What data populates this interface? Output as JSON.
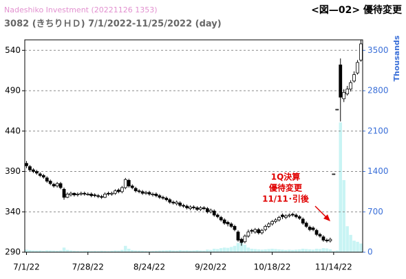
{
  "chart_data": {
    "type": "candlestick",
    "title": "Nadeshiko Investment  (20221126 1353)",
    "subtitle": "3082 (きちりＨＤ) 7/1/2022-11/25/2022 (day)",
    "heading": "<図—02> 優待変更",
    "y2label": "Thousands",
    "annotation": [
      "1Q決算",
      "優待変更",
      "11/11･引後"
    ],
    "annotation_color": "#e00000",
    "up_color": "#ffffff",
    "down_color": "#000000",
    "volume_color": "#c8f4f4",
    "grid": true,
    "categories": [
      "7/1/22",
      null,
      null,
      null,
      null,
      null,
      null,
      null,
      null,
      null,
      null,
      null,
      null,
      null,
      null,
      null,
      null,
      null,
      "7/28/22",
      null,
      null,
      null,
      null,
      null,
      null,
      null,
      null,
      null,
      null,
      null,
      null,
      null,
      null,
      null,
      null,
      null,
      "8/24/22",
      null,
      null,
      null,
      null,
      null,
      null,
      null,
      null,
      null,
      null,
      null,
      null,
      null,
      null,
      null,
      null,
      null,
      "9/20/22",
      null,
      null,
      null,
      null,
      null,
      null,
      null,
      null,
      null,
      null,
      null,
      null,
      null,
      null,
      null,
      null,
      null,
      "10/18/22",
      null,
      null,
      null,
      null,
      null,
      null,
      null,
      null,
      null,
      null,
      null,
      null,
      null,
      null,
      null,
      null,
      null,
      "11/14/22",
      null,
      null,
      null,
      null,
      null,
      null,
      null,
      null
    ],
    "open": [
      400,
      396,
      392,
      390,
      387,
      385,
      382,
      378,
      374,
      372,
      375,
      368,
      358,
      361,
      363,
      361,
      362,
      363,
      361,
      362,
      361,
      360,
      359,
      358,
      363,
      362,
      363,
      367,
      365,
      370,
      379,
      372,
      369,
      366,
      365,
      363,
      364,
      361,
      362,
      360,
      358,
      357,
      355,
      352,
      350,
      351,
      348,
      347,
      344,
      346,
      345,
      343,
      345,
      344,
      340,
      341,
      336,
      333,
      330,
      327,
      325,
      322,
      315,
      306,
      303,
      310,
      317,
      315,
      318,
      314,
      318,
      322,
      325,
      328,
      330,
      336,
      333,
      335,
      337,
      336,
      334,
      331,
      326,
      321,
      320,
      317,
      312,
      309,
      305,
      304,
      387,
      467,
      522,
      480,
      486,
      492,
      502,
      512,
      528
    ],
    "high": [
      403,
      398,
      394,
      392,
      389,
      387,
      384,
      380,
      376,
      377,
      377,
      370,
      364,
      365,
      364,
      364,
      365,
      365,
      364,
      364,
      363,
      362,
      361,
      364,
      365,
      365,
      368,
      369,
      372,
      382,
      381,
      374,
      371,
      368,
      367,
      366,
      366,
      364,
      364,
      362,
      360,
      359,
      357,
      354,
      354,
      353,
      350,
      349,
      348,
      348,
      347,
      347,
      347,
      346,
      344,
      343,
      338,
      335,
      332,
      329,
      327,
      324,
      317,
      308,
      312,
      318,
      319,
      320,
      320,
      319,
      324,
      327,
      330,
      332,
      335,
      338,
      337,
      338,
      339,
      338,
      336,
      333,
      328,
      323,
      322,
      319,
      314,
      311,
      307,
      308,
      387,
      467,
      530,
      492,
      496,
      503,
      514,
      528,
      553
    ],
    "low": [
      394,
      390,
      388,
      386,
      383,
      381,
      376,
      373,
      370,
      370,
      368,
      355,
      357,
      359,
      359,
      359,
      360,
      360,
      360,
      358,
      358,
      357,
      356,
      357,
      360,
      360,
      361,
      363,
      363,
      368,
      370,
      368,
      364,
      363,
      361,
      361,
      360,
      359,
      358,
      356,
      355,
      353,
      350,
      349,
      348,
      346,
      345,
      343,
      342,
      343,
      341,
      341,
      342,
      338,
      338,
      334,
      332,
      328,
      324,
      322,
      320,
      316,
      303,
      298,
      301,
      308,
      313,
      313,
      312,
      312,
      316,
      320,
      323,
      326,
      328,
      331,
      331,
      333,
      334,
      332,
      330,
      324,
      320,
      316,
      316,
      310,
      308,
      303,
      302,
      302,
      387,
      467,
      452,
      476,
      484,
      489,
      500,
      510,
      526
    ],
    "close": [
      397,
      392,
      390,
      388,
      385,
      383,
      378,
      375,
      372,
      375,
      370,
      358,
      362,
      363,
      361,
      362,
      363,
      362,
      362,
      360,
      360,
      359,
      358,
      362,
      362,
      363,
      366,
      365,
      370,
      380,
      372,
      370,
      366,
      365,
      363,
      364,
      362,
      362,
      360,
      358,
      357,
      355,
      352,
      351,
      352,
      348,
      347,
      345,
      346,
      345,
      343,
      345,
      344,
      340,
      342,
      336,
      334,
      330,
      326,
      325,
      322,
      318,
      305,
      302,
      310,
      315,
      316,
      318,
      314,
      317,
      322,
      325,
      328,
      330,
      333,
      334,
      335,
      336,
      336,
      334,
      332,
      326,
      322,
      318,
      318,
      312,
      310,
      305,
      304,
      306,
      387,
      467,
      482,
      488,
      492,
      500,
      510,
      525,
      548
    ],
    "volume": {
      "axis": "y2",
      "values": [
        45,
        35,
        30,
        28,
        30,
        25,
        32,
        30,
        28,
        25,
        30,
        80,
        40,
        30,
        25,
        22,
        20,
        22,
        25,
        20,
        22,
        20,
        25,
        22,
        20,
        25,
        30,
        28,
        40,
        110,
        60,
        35,
        30,
        28,
        25,
        22,
        20,
        22,
        25,
        28,
        30,
        32,
        35,
        30,
        28,
        35,
        30,
        32,
        28,
        30,
        35,
        30,
        28,
        45,
        40,
        60,
        55,
        70,
        80,
        75,
        90,
        110,
        160,
        180,
        130,
        80,
        60,
        55,
        50,
        45,
        50,
        55,
        60,
        55,
        50,
        45,
        40,
        45,
        40,
        45,
        50,
        60,
        55,
        50,
        45,
        60,
        55,
        70,
        65,
        50,
        20,
        30,
        2250,
        1250,
        450,
        300,
        200,
        180,
        150
      ]
    },
    "ylim": [
      290,
      553
    ],
    "yticks": [
      290,
      340,
      390,
      440,
      490,
      540
    ],
    "y2lim": [
      0,
      3682
    ],
    "y2ticks": [
      0,
      700,
      1400,
      2100,
      2800,
      3500
    ]
  }
}
